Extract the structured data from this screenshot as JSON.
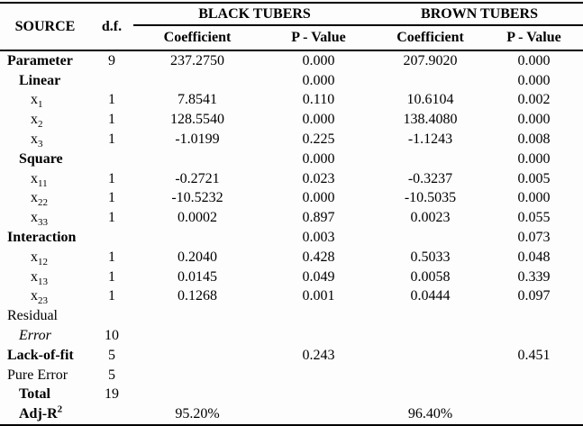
{
  "table": {
    "headers": {
      "source": "SOURCE",
      "df": "d.f.",
      "group_black": "BLACK TUBERS",
      "group_brown": "BROWN TUBERS",
      "coefficient_black": "Coefficient",
      "p_value_black": "P - Value",
      "coefficient_brown": "Coefficient",
      "p_value_brown": "P - Value"
    },
    "rows": [
      {
        "label": "Parameter",
        "sub": "",
        "sup": "",
        "style": "bold",
        "indent": 0,
        "df": "9",
        "black_coef": "237.2750",
        "black_p": "0.000",
        "brown_coef": "207.9020",
        "brown_p": "0.000"
      },
      {
        "label": "Linear",
        "sub": "",
        "sup": "",
        "style": "bold",
        "indent": 1,
        "df": "",
        "black_coef": "",
        "black_p": "0.000",
        "brown_coef": "",
        "brown_p": "0.000"
      },
      {
        "label": "x",
        "sub": "1",
        "sup": "",
        "style": "normal",
        "indent": 2,
        "df": "1",
        "black_coef": "7.8541",
        "black_p": "0.110",
        "brown_coef": "10.6104",
        "brown_p": "0.002"
      },
      {
        "label": "x",
        "sub": "2",
        "sup": "",
        "style": "normal",
        "indent": 2,
        "df": "1",
        "black_coef": "128.5540",
        "black_p": "0.000",
        "brown_coef": "138.4080",
        "brown_p": "0.000"
      },
      {
        "label": "x",
        "sub": "3",
        "sup": "",
        "style": "normal",
        "indent": 2,
        "df": "1",
        "black_coef": "-1.0199",
        "black_p": "0.225",
        "brown_coef": "-1.1243",
        "brown_p": "0.008"
      },
      {
        "label": "Square",
        "sub": "",
        "sup": "",
        "style": "bold",
        "indent": 1,
        "df": "",
        "black_coef": "",
        "black_p": "0.000",
        "brown_coef": "",
        "brown_p": "0.000"
      },
      {
        "label": "x",
        "sub": "11",
        "sup": "",
        "style": "normal",
        "indent": 2,
        "df": "1",
        "black_coef": "-0.2721",
        "black_p": "0.023",
        "brown_coef": "-0.3237",
        "brown_p": "0.005"
      },
      {
        "label": "x",
        "sub": "22",
        "sup": "",
        "style": "normal",
        "indent": 2,
        "df": "1",
        "black_coef": "-10.5232",
        "black_p": "0.000",
        "brown_coef": "-10.5035",
        "brown_p": "0.000"
      },
      {
        "label": "x",
        "sub": "33",
        "sup": "",
        "style": "normal",
        "indent": 2,
        "df": "1",
        "black_coef": "0.0002",
        "black_p": "0.897",
        "brown_coef": "0.0023",
        "brown_p": "0.055"
      },
      {
        "label": "Interaction",
        "sub": "",
        "sup": "",
        "style": "bold",
        "indent": 0,
        "df": "",
        "black_coef": "",
        "black_p": "0.003",
        "brown_coef": "",
        "brown_p": "0.073"
      },
      {
        "label": "x",
        "sub": "12",
        "sup": "",
        "style": "normal",
        "indent": 2,
        "df": "1",
        "black_coef": "0.2040",
        "black_p": "0.428",
        "brown_coef": "0.5033",
        "brown_p": "0.048"
      },
      {
        "label": "x",
        "sub": "13",
        "sup": "",
        "style": "normal",
        "indent": 2,
        "df": "1",
        "black_coef": "0.0145",
        "black_p": "0.049",
        "brown_coef": "0.0058",
        "brown_p": "0.339"
      },
      {
        "label": "x",
        "sub": "23",
        "sup": "",
        "style": "normal",
        "indent": 2,
        "df": "1",
        "black_coef": "0.1268",
        "black_p": "0.001",
        "brown_coef": "0.0444",
        "brown_p": "0.097"
      },
      {
        "label": "Residual",
        "sub": "",
        "sup": "",
        "style": "normal",
        "indent": 0,
        "df": "",
        "black_coef": "",
        "black_p": "",
        "brown_coef": "",
        "brown_p": ""
      },
      {
        "label": "Error",
        "sub": "",
        "sup": "",
        "style": "italic",
        "indent": 1,
        "df": "10",
        "black_coef": "",
        "black_p": "",
        "brown_coef": "",
        "brown_p": ""
      },
      {
        "label": "Lack-of-fit",
        "sub": "",
        "sup": "",
        "style": "bold",
        "indent": 0,
        "df": "5",
        "black_coef": "",
        "black_p": "0.243",
        "brown_coef": "",
        "brown_p": "0.451"
      },
      {
        "label": "Pure Error",
        "sub": "",
        "sup": "",
        "style": "normal",
        "indent": 0,
        "df": "5",
        "black_coef": "",
        "black_p": "",
        "brown_coef": "",
        "brown_p": ""
      },
      {
        "label": "Total",
        "sub": "",
        "sup": "",
        "style": "bold",
        "indent": 1,
        "df": "19",
        "black_coef": "",
        "black_p": "",
        "brown_coef": "",
        "brown_p": ""
      },
      {
        "label": "Adj-R",
        "sub": "",
        "sup": "2",
        "style": "bold",
        "indent": 1,
        "df": "",
        "black_coef": "95.20%",
        "black_p": "",
        "brown_coef": "96.40%",
        "brown_p": ""
      }
    ]
  }
}
